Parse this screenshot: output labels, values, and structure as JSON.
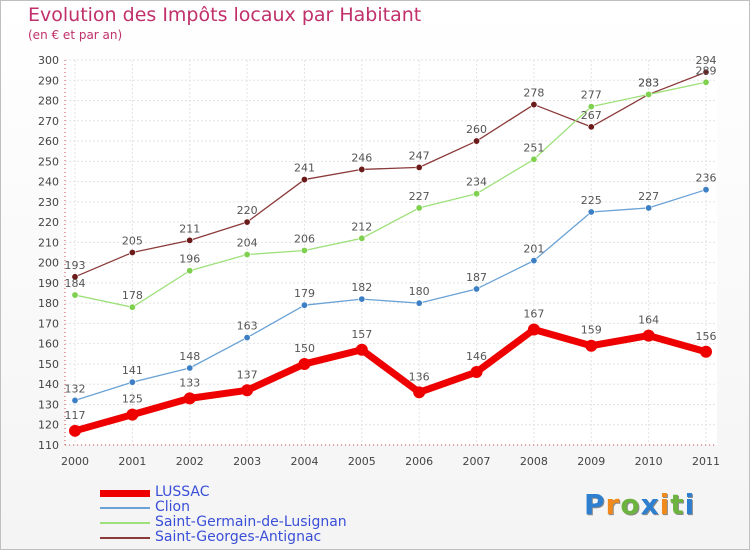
{
  "title": "Evolution des Impôts locaux par Habitant",
  "subtitle": "(en € et par an)",
  "brand": {
    "text": "Proxiti",
    "letters": [
      {
        "ch": "P",
        "color": "#2f7fd0"
      },
      {
        "ch": "r",
        "color": "#f08a1c"
      },
      {
        "ch": "o",
        "color": "#6cb33f"
      },
      {
        "ch": "x",
        "color": "#2f7fd0"
      },
      {
        "ch": "i",
        "color": "#f08a1c"
      },
      {
        "ch": "t",
        "color": "#6cb33f"
      },
      {
        "ch": "i",
        "color": "#2f7fd0"
      }
    ]
  },
  "chart_data": {
    "type": "line",
    "title": "Evolution des Impôts locaux par Habitant",
    "subtitle": "(en € et par an)",
    "xlabel": "",
    "ylabel": "",
    "ylim": [
      110,
      300
    ],
    "yticks": [
      110,
      120,
      130,
      140,
      150,
      160,
      170,
      180,
      190,
      200,
      210,
      220,
      230,
      240,
      250,
      260,
      270,
      280,
      290,
      300
    ],
    "categories": [
      "2000",
      "2001",
      "2002",
      "2003",
      "2004",
      "2005",
      "2006",
      "2007",
      "2008",
      "2009",
      "2010",
      "2011"
    ],
    "grid": true,
    "legend_position": "bottom-left",
    "series": [
      {
        "name": "LUSSAC",
        "color": "#ee0000",
        "point_color": "#ee0000",
        "values": [
          117,
          125,
          133,
          137,
          150,
          157,
          136,
          146,
          167,
          159,
          164,
          156
        ],
        "bold": true
      },
      {
        "name": "Clion",
        "color": "#6aa2d6",
        "point_color": "#3d7fc4",
        "values": [
          132,
          141,
          148,
          163,
          179,
          182,
          180,
          187,
          201,
          225,
          227,
          236
        ]
      },
      {
        "name": "Saint-Germain-de-Lusignan",
        "color": "#9ee07a",
        "point_color": "#7fd04f",
        "values": [
          184,
          178,
          196,
          204,
          206,
          212,
          227,
          234,
          251,
          277,
          283,
          289
        ]
      },
      {
        "name": "Saint-Georges-Antignac",
        "color": "#8b3a3a",
        "point_color": "#6b1a1a",
        "values": [
          193,
          205,
          211,
          220,
          241,
          246,
          247,
          260,
          278,
          267,
          283,
          294
        ]
      }
    ]
  }
}
